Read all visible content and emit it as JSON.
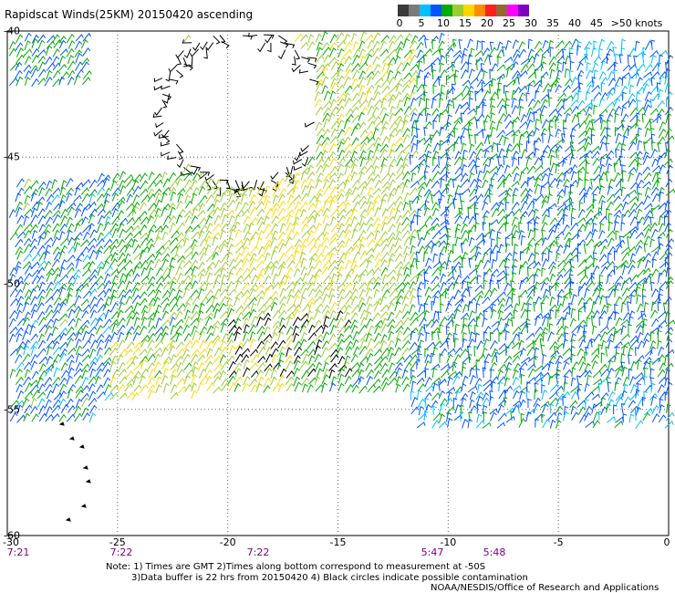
{
  "title": "Rapidscat Winds(25KM) 20150420 ascending",
  "colorbar": {
    "ticks": [
      "0",
      "5",
      "10",
      "15",
      "20",
      "25",
      "30",
      "35",
      "40",
      "45",
      ">50 knots"
    ],
    "colors": [
      "#3a3a3a",
      "#7a7a7a",
      "#00bfff",
      "#0055ff",
      "#00aa00",
      "#9acd32",
      "#ffd700",
      "#ff8c00",
      "#ff2020",
      "#996633",
      "#ff00ff",
      "#8000c0"
    ]
  },
  "lat_labels": [
    "-40",
    "-45",
    "-50",
    "-55",
    "-60"
  ],
  "lon_labels": [
    "-30",
    "-25",
    "-20",
    "-15",
    "-10",
    "-5",
    "0"
  ],
  "time_labels": [
    "7:21",
    "7:22",
    "7:22",
    "5:47",
    "5:48"
  ],
  "notes": {
    "line1": "Note: 1) Times are GMT 2)Times along bottom correspond to measurement at -50S",
    "line2": "3)Data buffer is 22 hrs from 20150420 4) Black circles indicate possible contamination",
    "line3": "NOAA/NESDIS/Office of Research and Applications"
  }
}
